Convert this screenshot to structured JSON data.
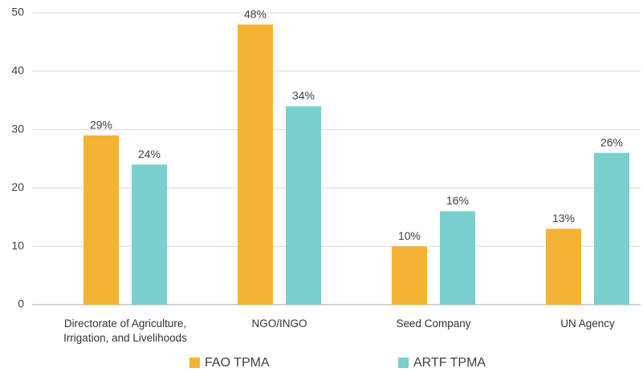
{
  "chart_data": {
    "type": "bar",
    "categories": [
      "Directorate of Agriculture, Irrigation, and Livelihoods",
      "NGO/INGO",
      "Seed Company",
      "UN Agency"
    ],
    "series": [
      {
        "name": "FAO TPMA",
        "color": "#f5b335",
        "values": [
          29,
          48,
          10,
          13
        ],
        "value_labels": [
          "29%",
          "48%",
          "10%",
          "13%"
        ]
      },
      {
        "name": "ARTF TPMA",
        "color": "#7acfcf",
        "values": [
          24,
          34,
          16,
          26
        ],
        "value_labels": [
          "24%",
          "34%",
          "16%",
          "26%"
        ]
      }
    ],
    "ylim": [
      0,
      50
    ],
    "yticks": [
      0,
      10,
      20,
      30,
      40,
      50
    ],
    "grid": true,
    "legend": "bottom"
  }
}
